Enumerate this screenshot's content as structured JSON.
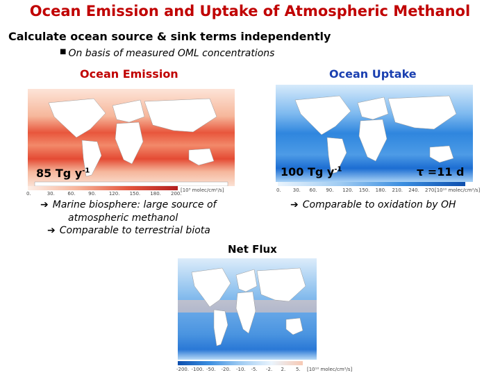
{
  "slide": {
    "title": "Ocean Emission and Uptake of Atmospheric Methanol",
    "subtitle": "Calculate ocean source & sink terms independently",
    "bullet": "On basis of measured OML concentrations"
  },
  "panels": {
    "emission": {
      "heading": "Ocean Emission",
      "stat_value": "85 Tg y",
      "stat_exp": "-1",
      "colorbar_ticks": [
        "0.",
        "30.",
        "60.",
        "90.",
        "120.",
        "150.",
        "180.",
        "200."
      ],
      "units": "[10³ molec/cm²/s]",
      "notes": [
        "Marine biosphere: large source of",
        "atmospheric methanol",
        "Comparable to terrestrial biota"
      ]
    },
    "uptake": {
      "heading": "Ocean Uptake",
      "stat_value": "100 Tg y",
      "stat_exp": "-1",
      "tau": "τ =11 d",
      "colorbar_ticks": [
        "0.",
        "30.",
        "60.",
        "90.",
        "120.",
        "150.",
        "180.",
        "210.",
        "240.",
        "270."
      ],
      "units": "[10¹⁰ molec/cm²/s]",
      "note": "Comparable to oxidation by OH"
    },
    "net": {
      "heading": "Net Flux",
      "colorbar_ticks": [
        "-200.",
        "-100.",
        "-50.",
        "-20.",
        "-10.",
        "-5.",
        "-2.",
        "2.",
        "5."
      ],
      "units": "[10¹⁰ molec/cm²/s]"
    }
  },
  "colors": {
    "title": "#c00000",
    "uptake_heading": "#1a3fb0",
    "emission_ocean": "#f3a98a",
    "uptake_ocean": "#3d8fe0",
    "net_ocean": "#7fb6ea",
    "land": "#ffffff"
  }
}
